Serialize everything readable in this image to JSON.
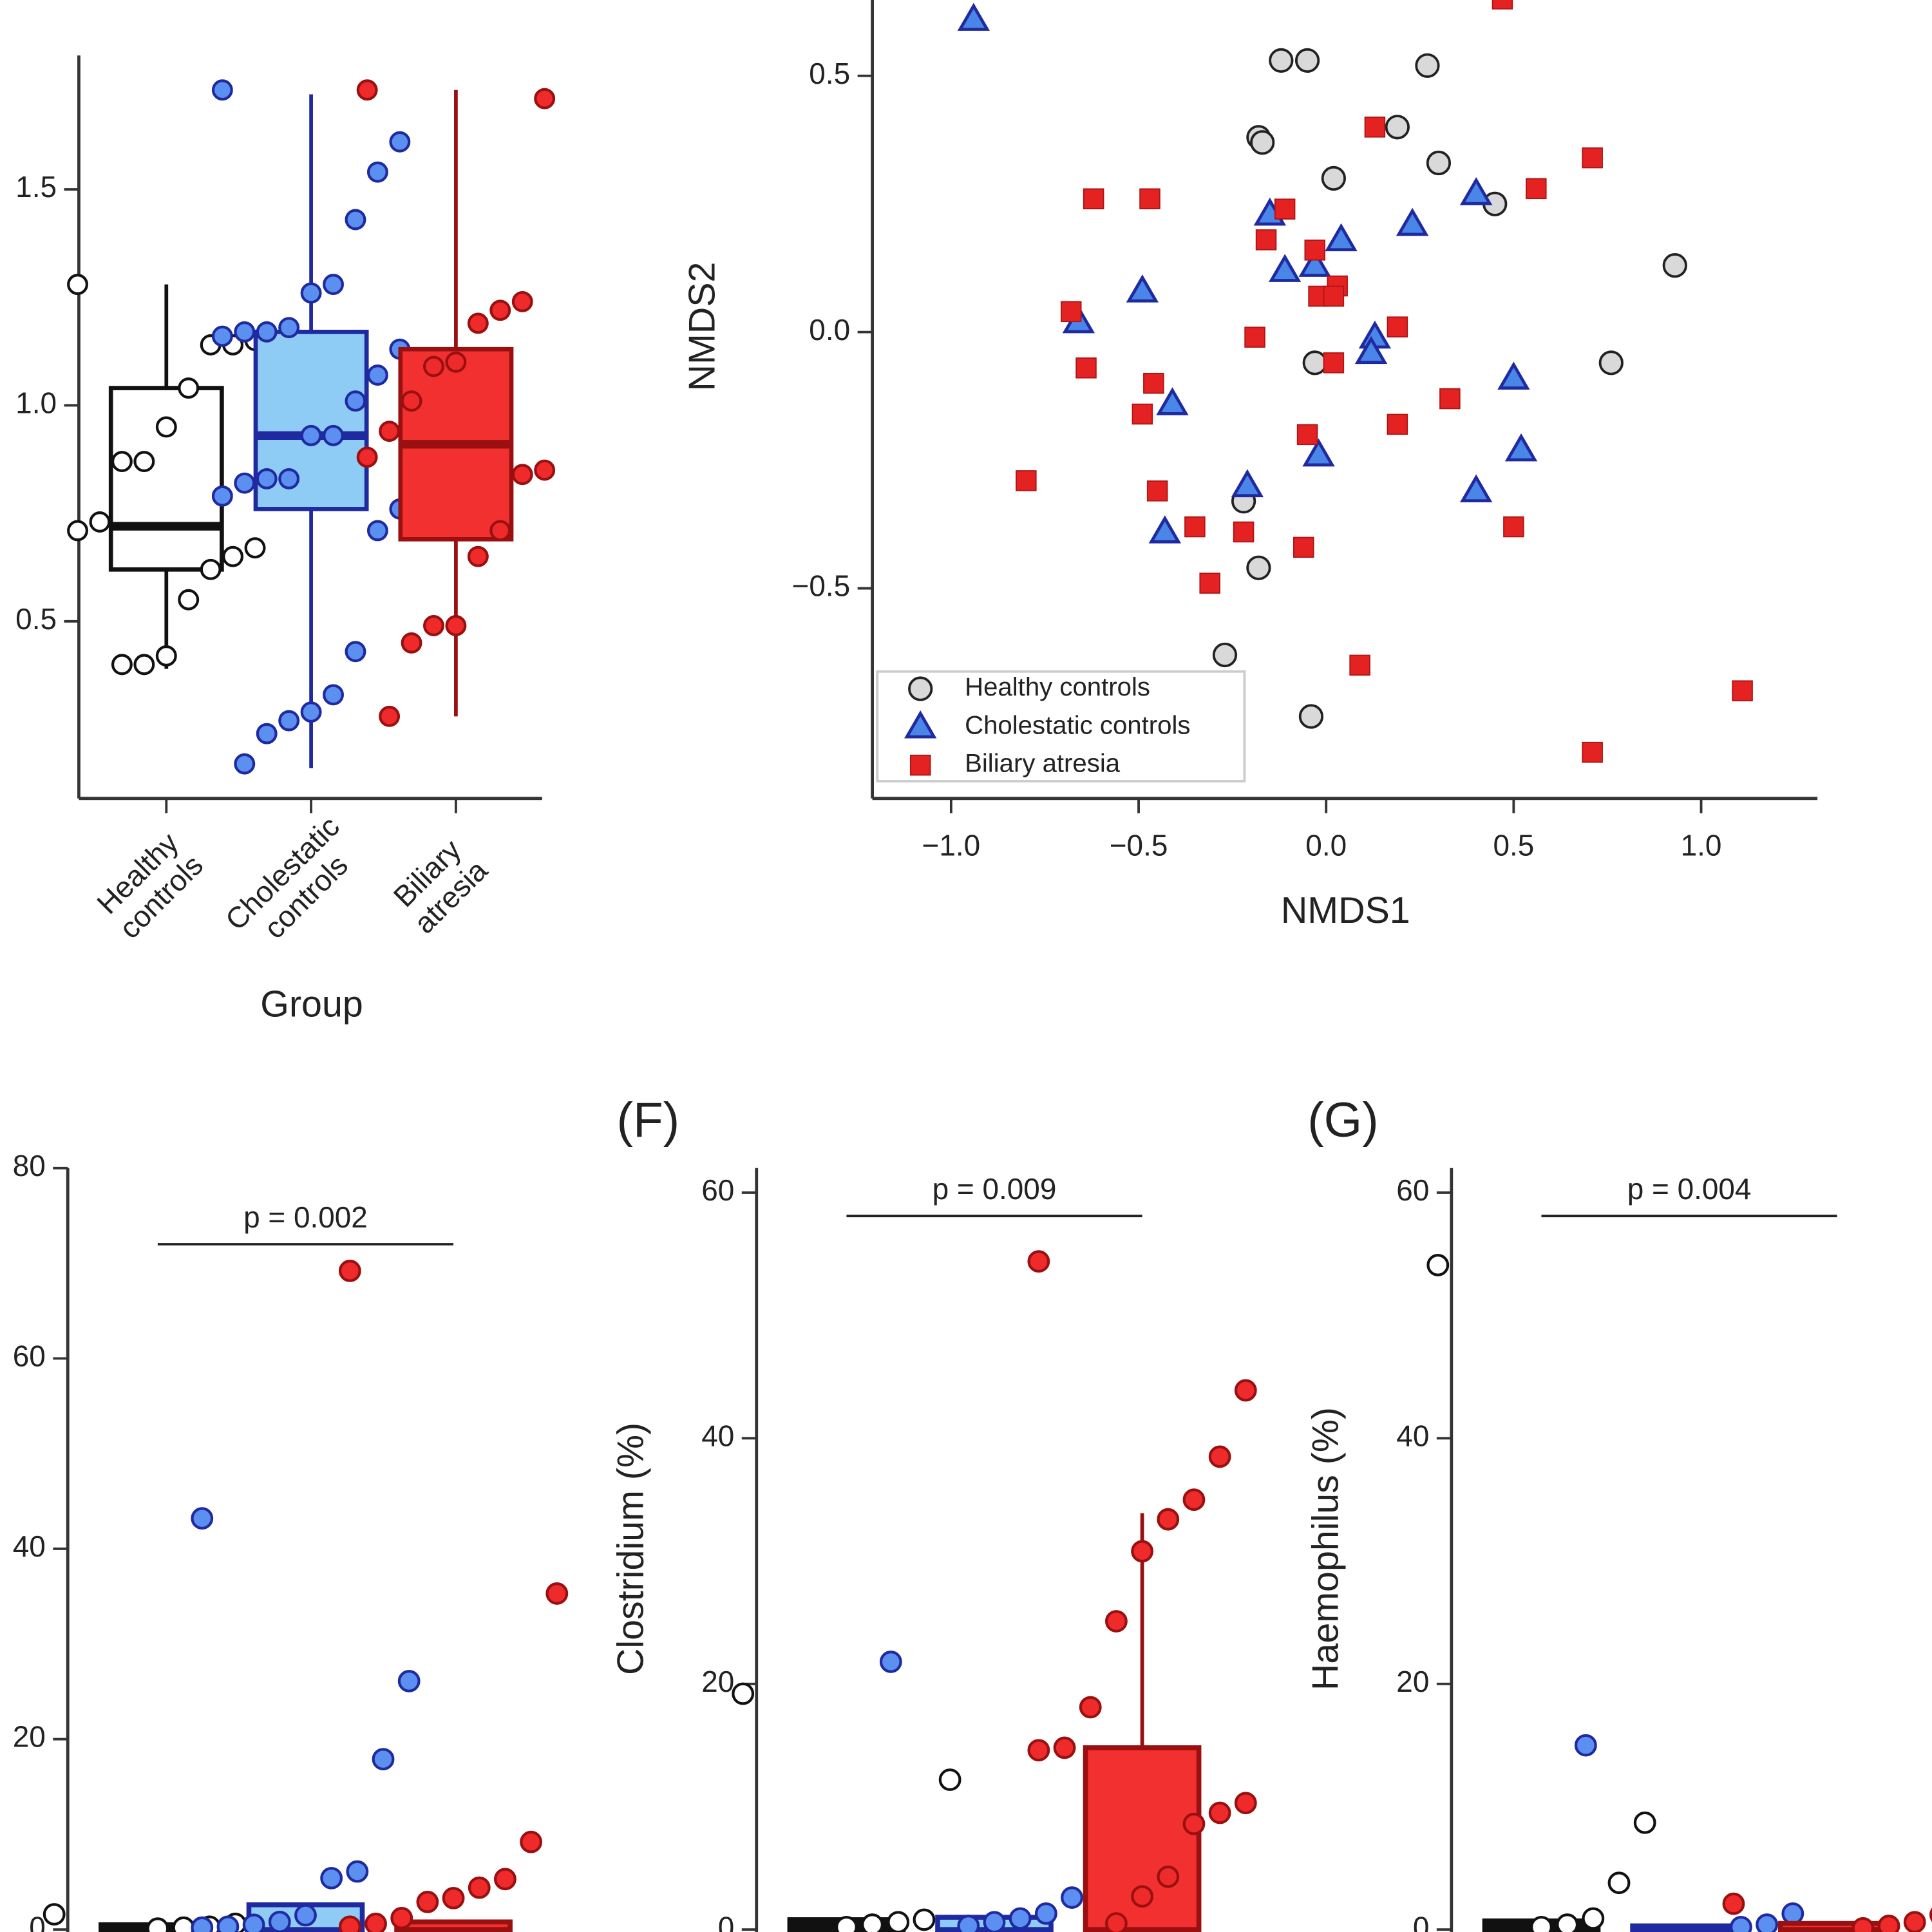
{
  "chart_data": [
    {
      "type": "box",
      "categories": [
        [
          "Healthy",
          "controls"
        ],
        [
          "Cholestatic",
          "controls"
        ],
        [
          "Biliary",
          "atresia"
        ]
      ],
      "xlabel": "Group",
      "ylim": [
        0.09,
        1.81
      ],
      "yticks": [
        0.5,
        {
          "value": 1,
          "label": "1.0"
        },
        1.5
      ],
      "boxes": [
        {
          "whislo": 0.39,
          "q1": 0.62,
          "med": 0.72,
          "q3": 1.04,
          "whishi": 1.28,
          "color": "#111111",
          "fill": "#ffffff",
          "point_fill": "#ffffff",
          "points": [
            1.28,
            1.15,
            1.14,
            1.14,
            1.04,
            0.95,
            0.87,
            0.87,
            0.73,
            0.71,
            0.67,
            0.65,
            0.62,
            0.55,
            0.42,
            0.4,
            0.4
          ]
        },
        {
          "whislo": 0.16,
          "q1": 0.76,
          "med": 0.93,
          "q3": 1.17,
          "whishi": 1.72,
          "color": "#1f2aa0",
          "fill": "#8ecbf5",
          "point_fill": "#5b8ff0",
          "points": [
            1.73,
            1.61,
            1.54,
            1.43,
            1.28,
            1.26,
            1.18,
            1.17,
            1.17,
            1.16,
            1.13,
            1.07,
            1.01,
            0.93,
            0.93,
            0.83,
            0.83,
            0.82,
            0.79,
            0.76,
            0.71,
            0.43,
            0.33,
            0.29,
            0.27,
            0.24,
            0.17
          ]
        },
        {
          "whislo": 0.28,
          "q1": 0.69,
          "med": 0.91,
          "q3": 1.13,
          "whishi": 1.73,
          "color": "#9a1010",
          "fill": "#f23030",
          "point_fill": "#ee2a2a",
          "points": [
            1.73,
            1.71,
            1.24,
            1.22,
            1.19,
            1.1,
            1.09,
            1.01,
            0.94,
            0.88,
            0.85,
            0.84,
            0.71,
            0.65,
            0.49,
            0.49,
            0.45,
            0.28
          ]
        }
      ]
    },
    {
      "type": "scatter",
      "xlabel": "NMDS1",
      "ylabel": "NMDS2",
      "xlim": [
        -1.21,
        1.31
      ],
      "ylim": [
        -0.91,
        0.66
      ],
      "xticks": [
        {
          "value": -1,
          "label": "−1.0"
        },
        {
          "value": -0.5,
          "label": "−0.5"
        },
        {
          "value": 0,
          "label": "0.0"
        },
        0.5,
        {
          "value": 1,
          "label": "1.0"
        }
      ],
      "yticks": [
        {
          "value": -0.5,
          "label": "−0.5"
        },
        {
          "value": 0,
          "label": "0.0"
        },
        0.5
      ],
      "legend": "lower left",
      "series": [
        {
          "name": "Healthy controls",
          "marker": "circle",
          "color": "#d9d9d9",
          "x": [
            -0.12,
            -0.05,
            0.27,
            -0.18,
            -0.17,
            0.19,
            0.02,
            0.3,
            0.45,
            0.93,
            -0.03,
            0.76,
            -0.22,
            -0.18,
            -0.27,
            -0.04
          ],
          "values": [
            0.53,
            0.53,
            0.52,
            0.38,
            0.37,
            0.4,
            0.3,
            0.33,
            0.25,
            0.13,
            -0.06,
            -0.06,
            -0.33,
            -0.46,
            -0.63,
            -0.75
          ]
        },
        {
          "name": "Cholestatic controls",
          "marker": "triangle",
          "color": "#4a86e8",
          "x": [
            -0.94,
            -0.15,
            0.04,
            -0.11,
            -0.03,
            0.23,
            0.4,
            -0.49,
            -0.66,
            0.13,
            0.12,
            -0.41,
            0.5,
            -0.02,
            0.52,
            -0.21,
            0.4,
            -0.43
          ],
          "values": [
            0.61,
            0.23,
            0.18,
            0.12,
            0.13,
            0.21,
            0.27,
            0.08,
            0.02,
            -0.01,
            -0.04,
            -0.14,
            -0.09,
            -0.24,
            -0.23,
            -0.3,
            -0.31,
            -0.39
          ]
        },
        {
          "name": "Biliary atresia",
          "marker": "square",
          "color": "#e52222",
          "x": [
            0.47,
            0.13,
            0.71,
            -0.62,
            -0.47,
            0.56,
            -0.11,
            -0.16,
            -0.03,
            0.03,
            -0.02,
            0.02,
            -0.68,
            0.19,
            -0.19,
            -0.64,
            0.02,
            -0.46,
            -0.49,
            0.33,
            -0.05,
            0.19,
            -0.8,
            -0.45,
            -0.35,
            -0.22,
            -0.06,
            0.5,
            -0.31,
            0.09,
            1.11,
            0.71
          ],
          "values": [
            0.65,
            0.4,
            0.34,
            0.26,
            0.26,
            0.28,
            0.24,
            0.18,
            0.16,
            0.09,
            0.07,
            0.07,
            0.04,
            0.01,
            -0.01,
            -0.07,
            -0.06,
            -0.1,
            -0.16,
            -0.13,
            -0.2,
            -0.18,
            -0.29,
            -0.31,
            -0.38,
            -0.39,
            -0.42,
            -0.38,
            -0.49,
            -0.65,
            -0.7,
            -0.82
          ]
        }
      ]
    },
    {
      "type": "bar",
      "categories": [
        null,
        null,
        null
      ],
      "ylim": [
        0,
        80
      ],
      "yticks": [
        0,
        20,
        40,
        60,
        80
      ],
      "values": [
        0.5,
        2.6,
        0.8
      ],
      "errors": [
        null,
        null,
        null
      ],
      "colors": [
        "#111111",
        "#1f2aa0",
        "#9a1010"
      ],
      "fills": [
        "#111111",
        "#8ecbf5",
        "#f23030"
      ],
      "point_fills": [
        "#ffffff",
        "#5b8ff0",
        "#ee2a2a"
      ],
      "points": [
        [
          1.6,
          0.9,
          0.6,
          0.3,
          0.2,
          0.1
        ],
        [
          43.2,
          26.1,
          17.9,
          6.1,
          5.4,
          1.5,
          0.8,
          0.5,
          0.3,
          0.2
        ],
        [
          69.2,
          35.3,
          9.2,
          5.3,
          4.4,
          3.3,
          2.9,
          1.2,
          0.6,
          0.3
        ]
      ],
      "bracket": {
        "label": "p = 0.002",
        "y": 72
      }
    },
    {
      "type": "bar",
      "panel": "(F)",
      "ylabel": "Clostridium (%)",
      "categories": [
        null,
        null,
        null
      ],
      "ylim": [
        0,
        62
      ],
      "yticks": [
        0,
        20,
        40,
        60
      ],
      "values": [
        0.8,
        1.0,
        14.8
      ],
      "errors": [
        null,
        null,
        19.1
      ],
      "colors": [
        "#111111",
        "#1f2aa0",
        "#9a1010"
      ],
      "fills": [
        "#111111",
        "#8ecbf5",
        "#f23030"
      ],
      "point_fills": [
        "#ffffff",
        "#5b8ff0",
        "#ee2a2a"
      ],
      "points": [
        [
          19.2,
          12.2,
          0.8,
          0.6,
          0.4,
          0.2
        ],
        [
          21.8,
          5.4,
          2.6,
          1.3,
          0.9,
          0.6,
          0.3
        ],
        [
          54.4,
          43.9,
          38.5,
          35.0,
          33.4,
          30.8,
          25.1,
          18.1,
          14.8,
          14.6,
          10.3,
          9.5,
          8.6,
          4.3,
          2.7,
          0.5
        ]
      ],
      "bracket": {
        "label": "p = 0.009",
        "y": 58.1
      }
    },
    {
      "type": "bar",
      "panel": "(G)",
      "ylabel": "Haemophilus (%)",
      "categories": [
        null,
        null,
        null
      ],
      "ylim": [
        0,
        62
      ],
      "yticks": [
        0,
        20,
        40,
        60
      ],
      "values": [
        0.7,
        0.3,
        0.5
      ],
      "errors": [
        null,
        null,
        null
      ],
      "colors": [
        "#111111",
        "#1f2aa0",
        "#9a1010"
      ],
      "fills": [
        "#111111",
        "#8ecbf5",
        "#f23030"
      ],
      "point_fills": [
        "#ffffff",
        "#5b8ff0",
        "#ee2a2a"
      ],
      "points": [
        [
          54.1,
          8.7,
          3.8,
          0.9,
          0.4,
          0.2
        ],
        [
          15.0,
          1.3,
          0.4,
          0.2
        ],
        [
          2.1,
          1.2,
          0.6,
          0.3,
          0.1
        ]
      ],
      "bracket": {
        "label": "p = 0.004",
        "y": 58.1
      }
    }
  ]
}
